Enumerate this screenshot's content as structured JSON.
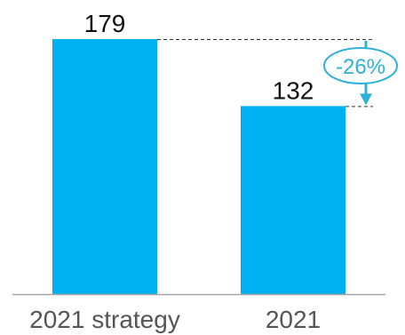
{
  "chart_data": {
    "type": "bar",
    "categories": [
      "2021 strategy",
      "2021"
    ],
    "values": [
      179,
      132
    ],
    "value_labels": [
      "179",
      "132"
    ],
    "change_label": "-26%",
    "ylim": [
      0,
      179
    ],
    "grid": false,
    "colors": {
      "bar": "#00B0F0",
      "change": "#2EB1D6",
      "axis": "#A6A6A6",
      "guide": "#333333",
      "tick_text": "#555555",
      "value_text": "#111111"
    }
  }
}
